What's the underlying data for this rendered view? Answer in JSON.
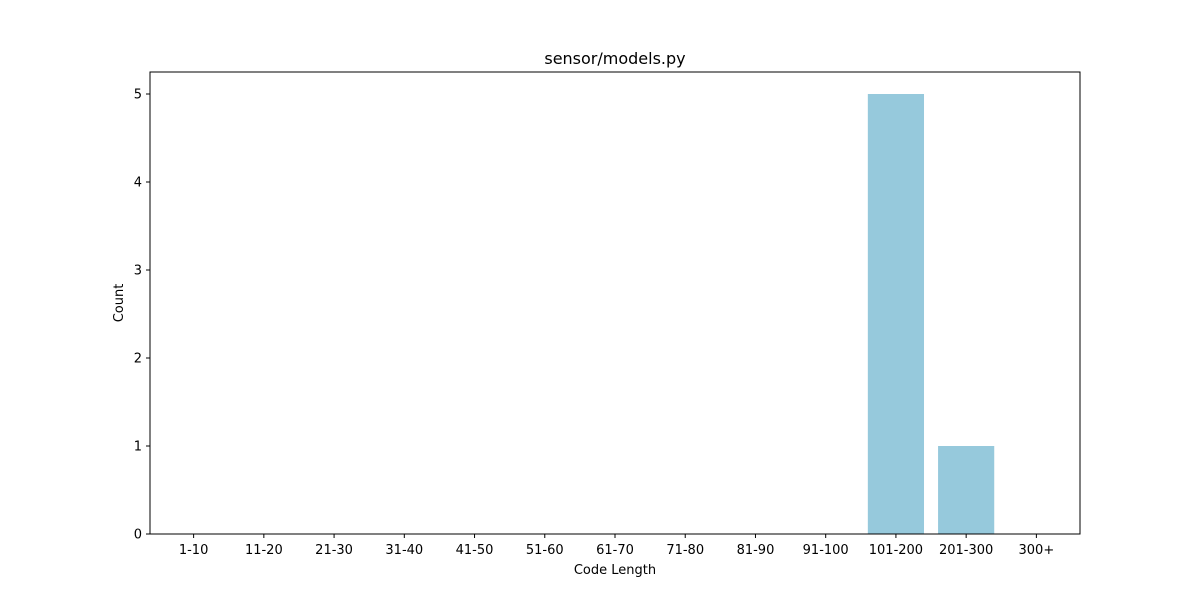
{
  "chart_data": {
    "type": "bar",
    "title": "sensor/models.py",
    "xlabel": "Code Length",
    "ylabel": "Count",
    "categories": [
      "1-10",
      "11-20",
      "21-30",
      "31-40",
      "41-50",
      "51-60",
      "61-70",
      "71-80",
      "81-90",
      "91-100",
      "101-200",
      "201-300",
      "300+"
    ],
    "values": [
      0,
      0,
      0,
      0,
      0,
      0,
      0,
      0,
      0,
      0,
      5,
      1,
      0
    ],
    "ylim": [
      0,
      5.25
    ],
    "yticks": [
      0,
      1,
      2,
      3,
      4,
      5
    ],
    "grid": false,
    "legend": "none",
    "bar_color": "#96c9dc",
    "axis_color": "#000000"
  }
}
